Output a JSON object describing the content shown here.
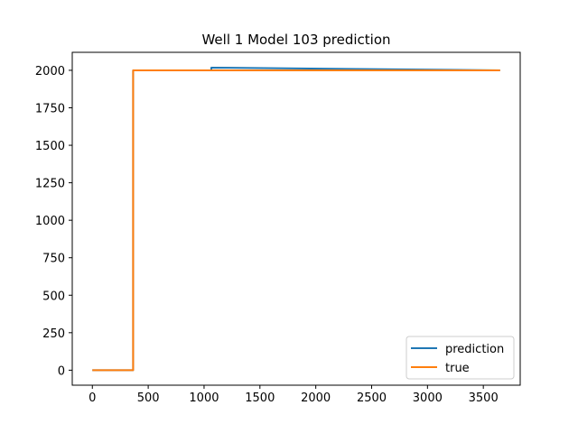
{
  "chart_data": {
    "type": "line",
    "title": "Well 1 Model 103 prediction",
    "xlabel": "",
    "ylabel": "",
    "xlim": [
      -180,
      3830
    ],
    "ylim": [
      -100,
      2120
    ],
    "xticks": [
      0,
      500,
      1000,
      1500,
      2000,
      2500,
      3000,
      3500
    ],
    "yticks": [
      0,
      250,
      500,
      750,
      1000,
      1250,
      1500,
      1750,
      2000
    ],
    "grid": false,
    "legend": {
      "placement": "lower-right"
    },
    "series": [
      {
        "name": "prediction",
        "color": "#1f77b4",
        "points": [
          [
            0,
            0
          ],
          [
            365,
            0
          ],
          [
            365,
            2000
          ],
          [
            1065,
            2000
          ],
          [
            1065,
            2018
          ],
          [
            3650,
            2000
          ]
        ]
      },
      {
        "name": "true",
        "color": "#ff7f0e",
        "points": [
          [
            0,
            0
          ],
          [
            365,
            0
          ],
          [
            365,
            2000
          ],
          [
            3650,
            2000
          ]
        ]
      }
    ]
  }
}
